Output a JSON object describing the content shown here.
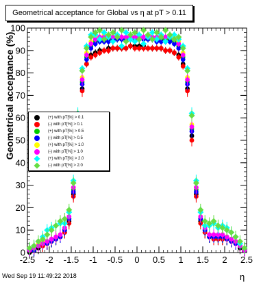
{
  "window": {
    "title": "Geometrical acceptance for Global vs   η at pT > 0.11",
    "timestamp": "Wed Sep 19 11:49:22 2018"
  },
  "chart_data": {
    "type": "scatter",
    "title": "Geometrical acceptance for Global vs   η at pT > 0.11",
    "xlabel": "η",
    "ylabel": "Geometrical acceptance (%)",
    "xlim": [
      -2.5,
      2.5
    ],
    "ylim": [
      0,
      100
    ],
    "x_ticks": [
      "-2.5",
      "-2",
      "-1.5",
      "-1",
      "-0.5",
      "0",
      "0.5",
      "1",
      "1.5",
      "2",
      "2.5"
    ],
    "y_ticks": [
      "0",
      "10",
      "20",
      "30",
      "40",
      "50",
      "60",
      "70",
      "80",
      "90",
      "100"
    ],
    "legend_position": "center-left",
    "eta_bins": [
      -2.45,
      -2.35,
      -2.25,
      -2.15,
      -2.05,
      -1.95,
      -1.85,
      -1.75,
      -1.65,
      -1.55,
      -1.45,
      -1.35,
      -1.25,
      -1.15,
      -1.05,
      -0.95,
      -0.85,
      -0.75,
      -0.65,
      -0.55,
      -0.45,
      -0.35,
      -0.25,
      -0.15,
      -0.05,
      0.05,
      0.15,
      0.25,
      0.35,
      0.45,
      0.55,
      0.65,
      0.75,
      0.85,
      0.95,
      1.05,
      1.15,
      1.25,
      1.35,
      1.45,
      1.55,
      1.65,
      1.75,
      1.85,
      1.95,
      2.05,
      2.15,
      2.25,
      2.35,
      2.45
    ],
    "series": [
      {
        "name": "(+) with pT[%] > 0.1",
        "color": "#000000",
        "marker": "circle",
        "values": [
          0,
          1,
          2,
          3,
          4,
          5,
          6,
          7,
          9,
          14,
          26,
          52,
          73,
          84,
          88,
          89,
          90,
          90,
          91,
          91,
          91,
          91,
          91,
          92,
          92,
          92,
          92,
          91,
          91,
          91,
          91,
          90,
          90,
          89,
          88,
          84,
          73,
          52,
          26,
          14,
          9,
          7,
          6,
          6,
          6,
          6,
          5,
          4,
          2,
          1
        ]
      },
      {
        "name": "(-) with pT[%] > 0.1",
        "color": "#ff0000",
        "marker": "circle",
        "values": [
          1,
          2,
          3,
          3,
          4,
          5,
          6,
          7,
          9,
          13,
          25,
          50,
          72,
          84,
          87,
          88,
          89,
          90,
          90,
          91,
          91,
          91,
          91,
          92,
          91,
          91,
          91,
          91,
          91,
          91,
          91,
          90,
          90,
          89,
          87,
          83,
          72,
          50,
          25,
          13,
          9,
          7,
          6,
          6,
          6,
          6,
          5,
          4,
          3,
          1
        ]
      },
      {
        "name": "(+) with pT[%] > 0.5",
        "color": "#00cc00",
        "marker": "circle",
        "values": [
          1,
          2,
          3,
          4,
          5,
          5,
          6,
          7,
          10,
          15,
          28,
          55,
          76,
          87,
          92,
          94,
          95,
          95,
          95,
          95,
          95,
          95,
          95,
          95,
          95,
          95,
          95,
          95,
          95,
          95,
          95,
          95,
          95,
          94,
          92,
          87,
          76,
          55,
          28,
          15,
          10,
          7,
          7,
          7,
          7,
          6,
          6,
          5,
          3,
          2
        ]
      },
      {
        "name": "(-) with pT[%] > 0.5",
        "color": "#0000ff",
        "marker": "circle",
        "values": [
          1,
          1,
          3,
          4,
          4,
          5,
          6,
          7,
          10,
          15,
          27,
          54,
          75,
          86,
          91,
          93,
          94,
          94,
          94,
          95,
          95,
          95,
          95,
          95,
          95,
          95,
          95,
          95,
          95,
          94,
          94,
          94,
          94,
          93,
          91,
          86,
          75,
          54,
          27,
          15,
          10,
          7,
          7,
          7,
          7,
          6,
          5,
          4,
          3,
          1
        ]
      },
      {
        "name": "(+) with pT[%] > 1.0",
        "color": "#ffff00",
        "marker": "circle",
        "values": [
          2,
          2,
          4,
          5,
          5,
          6,
          7,
          8,
          11,
          16,
          29,
          57,
          78,
          89,
          94,
          96,
          96,
          97,
          96,
          96,
          96,
          96,
          96,
          96,
          96,
          96,
          96,
          96,
          96,
          96,
          96,
          96,
          96,
          96,
          94,
          89,
          78,
          57,
          29,
          16,
          11,
          8,
          8,
          8,
          8,
          7,
          6,
          5,
          3,
          2
        ]
      },
      {
        "name": "(-) with pT[%] > 1.0",
        "color": "#ff00ff",
        "marker": "circle",
        "values": [
          1,
          2,
          3,
          4,
          5,
          6,
          7,
          8,
          11,
          16,
          29,
          56,
          77,
          88,
          93,
          95,
          96,
          96,
          96,
          96,
          96,
          96,
          96,
          96,
          96,
          96,
          96,
          96,
          96,
          96,
          96,
          96,
          96,
          95,
          93,
          88,
          77,
          56,
          29,
          16,
          11,
          8,
          8,
          8,
          8,
          7,
          6,
          5,
          3,
          1
        ]
      },
      {
        "name": "(+) with pT[%] > 2.0",
        "color": "#00ffff",
        "marker": "diamond",
        "values": [
          2,
          3,
          5,
          7,
          10,
          11,
          12,
          13,
          13,
          18,
          32,
          62,
          82,
          92,
          97,
          97,
          95,
          98,
          96,
          94,
          97,
          92,
          98,
          95,
          94,
          97,
          93,
          96,
          98,
          95,
          97,
          94,
          96,
          97,
          95,
          92,
          82,
          62,
          32,
          18,
          12,
          12,
          13,
          11,
          12,
          11,
          9,
          7,
          4,
          2
        ]
      },
      {
        "name": "(-) with pT[%] > 2.0",
        "color": "#66dd44",
        "marker": "diamond",
        "values": [
          2,
          3,
          5,
          6,
          8,
          10,
          12,
          14,
          15,
          19,
          31,
          61,
          81,
          91,
          96,
          98,
          99,
          95,
          97,
          98,
          96,
          99,
          94,
          97,
          98,
          95,
          99,
          97,
          95,
          98,
          96,
          99,
          97,
          95,
          96,
          91,
          81,
          61,
          31,
          19,
          14,
          13,
          14,
          12,
          11,
          10,
          9,
          7,
          5,
          2
        ]
      }
    ]
  }
}
